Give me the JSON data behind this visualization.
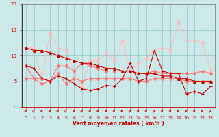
{
  "xlabel": "Vent moyen/en rafales ( km/h )",
  "x": [
    0,
    1,
    2,
    3,
    4,
    5,
    6,
    7,
    8,
    9,
    10,
    11,
    12,
    13,
    14,
    15,
    16,
    17,
    18,
    19,
    20,
    21,
    22,
    23
  ],
  "line1_dark_jagged": [
    8.0,
    7.5,
    5.5,
    5.0,
    6.0,
    5.5,
    4.5,
    3.5,
    3.2,
    3.5,
    4.2,
    4.0,
    5.5,
    8.5,
    5.0,
    5.5,
    11.0,
    7.0,
    6.5,
    6.5,
    2.5,
    3.0,
    2.5,
    4.0
  ],
  "line2_dark_trend": [
    11.5,
    11.0,
    11.0,
    10.5,
    10.0,
    9.5,
    9.0,
    8.5,
    8.5,
    8.0,
    7.5,
    7.5,
    7.0,
    7.0,
    6.5,
    6.5,
    6.5,
    6.0,
    6.0,
    5.5,
    5.5,
    5.0,
    5.0,
    5.0
  ],
  "line3_light_high": [
    11.5,
    11.5,
    5.5,
    14.5,
    11.5,
    11.0,
    7.0,
    4.0,
    9.0,
    9.0,
    10.5,
    9.0,
    13.0,
    7.0,
    8.5,
    9.5,
    11.0,
    11.5,
    11.0,
    16.5,
    13.0,
    13.0,
    12.5,
    7.0
  ],
  "line4_light_mid": [
    8.0,
    5.5,
    5.5,
    5.0,
    8.0,
    8.0,
    7.0,
    8.5,
    8.0,
    7.5,
    7.0,
    7.0,
    7.0,
    7.0,
    6.5,
    6.5,
    7.0,
    6.5,
    6.5,
    6.5,
    6.5,
    6.5,
    7.0,
    6.5
  ],
  "line5_light_low": [
    5.5,
    5.5,
    4.5,
    5.0,
    6.5,
    4.5,
    5.5,
    5.0,
    5.5,
    5.5,
    5.5,
    5.5,
    5.5,
    5.5,
    5.0,
    5.0,
    5.5,
    5.5,
    5.5,
    5.5,
    5.0,
    5.0,
    5.0,
    5.0
  ],
  "color_dark": "#cc0000",
  "color_mid": "#ff7777",
  "color_light": "#ffbbbb",
  "background": "#cce8e8",
  "grid_color": "#99cccc",
  "ylim": [
    0,
    20
  ],
  "yticks": [
    0,
    5,
    10,
    15,
    20
  ],
  "xticks": [
    0,
    1,
    2,
    3,
    4,
    5,
    6,
    7,
    8,
    9,
    10,
    11,
    12,
    13,
    14,
    15,
    16,
    17,
    18,
    19,
    20,
    21,
    22,
    23
  ],
  "arrow_angles": [
    0,
    45,
    0,
    0,
    0,
    45,
    0,
    45,
    0,
    0,
    0,
    0,
    0,
    45,
    0,
    0,
    45,
    45,
    0,
    0,
    0,
    0,
    0,
    45
  ]
}
